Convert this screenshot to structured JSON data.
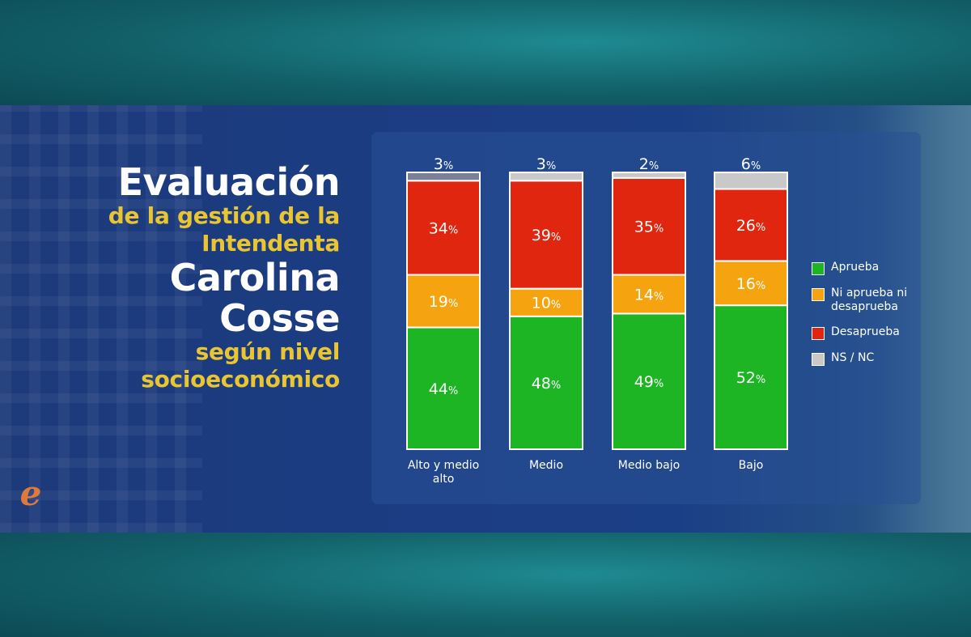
{
  "title": {
    "line1": "Evaluación",
    "line2": "de la gestión de la",
    "line3": "Intendenta",
    "line4": "Carolina",
    "line5": "Cosse",
    "line6": "según nivel",
    "line7": "socioeconómico"
  },
  "logo": {
    "glyph": "e",
    "icon": "e-logo-icon",
    "color": "#e07a3c"
  },
  "colors": {
    "aprueba": "#1db524",
    "ni": "#f5a40f",
    "desaprueba": "#e0260f",
    "nsnc": "#c9c9c9",
    "nsnc_first": "#7a7f96"
  },
  "chart_data": {
    "type": "bar",
    "stacked": true,
    "categories": [
      "Alto y medio alto",
      "Medio",
      "Medio bajo",
      "Bajo"
    ],
    "series": [
      {
        "name": "Aprueba",
        "values": [
          44,
          48,
          49,
          52
        ]
      },
      {
        "name": "Ni aprueba ni desaprueba",
        "values": [
          19,
          10,
          14,
          16
        ]
      },
      {
        "name": "Desaprueba",
        "values": [
          34,
          39,
          35,
          26
        ]
      },
      {
        "name": "NS / NC",
        "values": [
          3,
          3,
          2,
          6
        ]
      }
    ],
    "unit": "%",
    "ylim": [
      0,
      100
    ],
    "grid": false,
    "legend_position": "right"
  },
  "legend": [
    {
      "label": "Aprueba",
      "color": "#1db524"
    },
    {
      "label": "Ni aprueba ni desaprueba",
      "color": "#f5a40f"
    },
    {
      "label": "Desaprueba",
      "color": "#e0260f"
    },
    {
      "label": "NS / NC",
      "color": "#c9c9c9"
    }
  ]
}
